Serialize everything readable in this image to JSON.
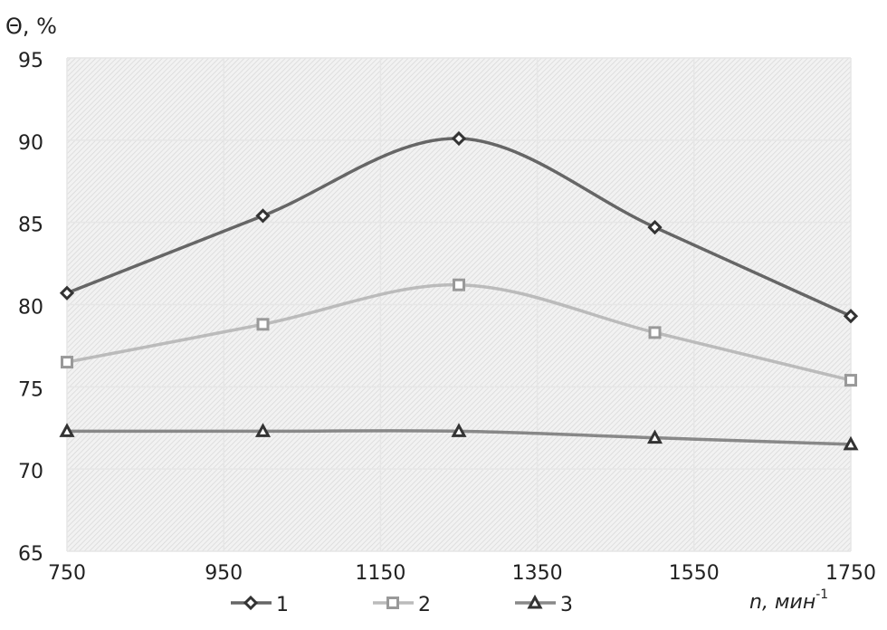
{
  "chart_data": {
    "type": "line",
    "y_label": "Θ, %",
    "x_label": "n, мин",
    "x_label_sup": "-1",
    "x": [
      750,
      1000,
      1250,
      1500,
      1750
    ],
    "series": [
      {
        "name": "1",
        "color": "#666666",
        "marker": "diamond",
        "values": [
          80.7,
          85.4,
          90.1,
          84.7,
          79.3
        ]
      },
      {
        "name": "2",
        "color": "#bbbbbb",
        "marker": "square",
        "values": [
          76.5,
          78.8,
          81.2,
          78.3,
          75.4
        ]
      },
      {
        "name": "3",
        "color": "#888888",
        "marker": "triangle",
        "values": [
          72.3,
          72.3,
          72.3,
          71.9,
          71.5
        ]
      }
    ],
    "xlim": [
      750,
      1750
    ],
    "xticks": [
      750,
      950,
      1150,
      1350,
      1550,
      1750
    ],
    "ylim": [
      65,
      95
    ],
    "yticks": [
      65,
      70,
      75,
      80,
      85,
      90,
      95
    ],
    "grid": true,
    "smooth": true,
    "legend": "bottom"
  }
}
